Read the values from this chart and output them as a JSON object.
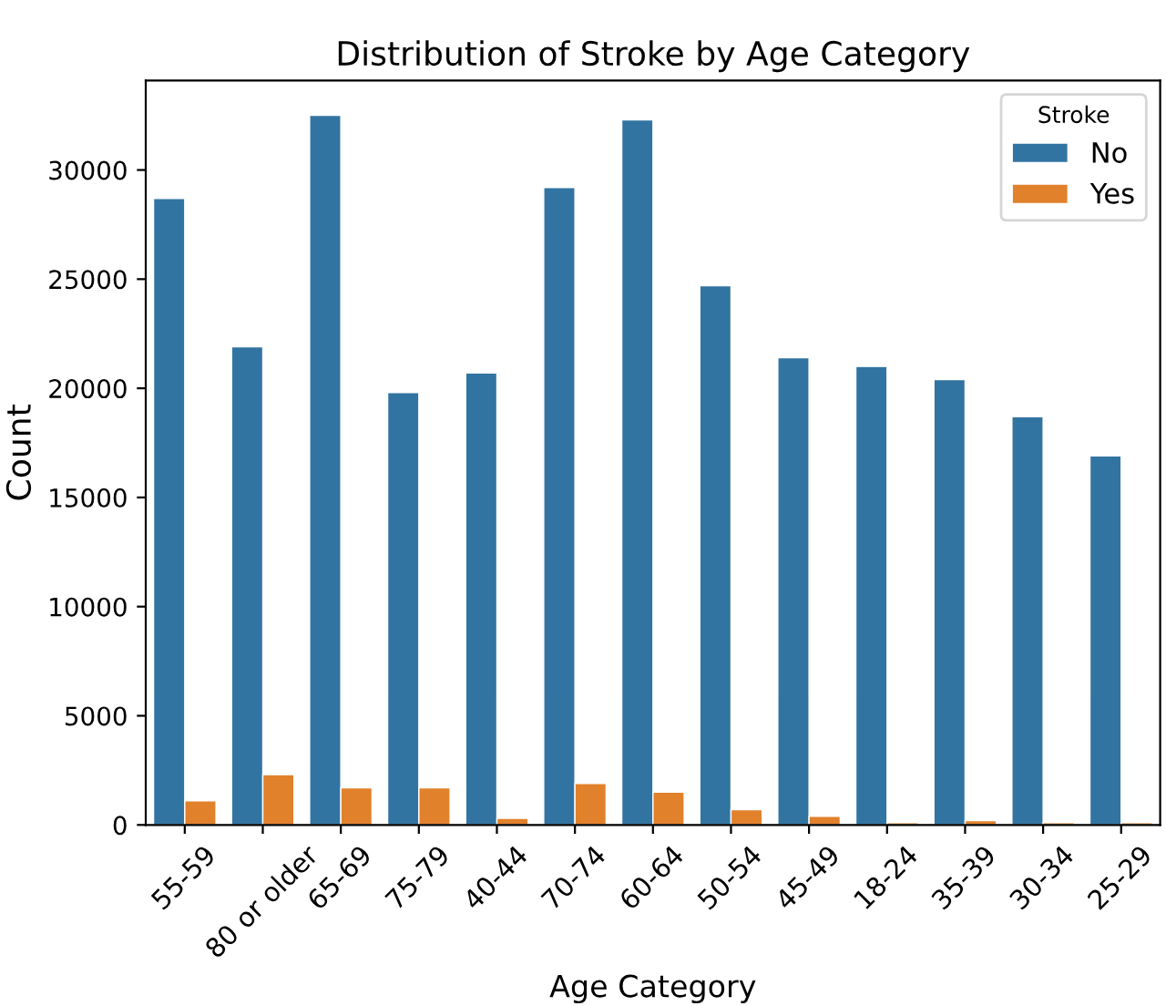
{
  "chart_data": {
    "type": "bar",
    "title": "Distribution of Stroke by Age Category",
    "xlabel": "Age Category",
    "ylabel": "Count",
    "legend_title": "Stroke",
    "categories": [
      "55-59",
      "80 or older",
      "65-69",
      "75-79",
      "40-44",
      "70-74",
      "60-64",
      "50-54",
      "45-49",
      "18-24",
      "35-39",
      "30-34",
      "25-29"
    ],
    "series": [
      {
        "name": "No",
        "color": "#3274a1",
        "values": [
          28700,
          21900,
          32500,
          19800,
          20700,
          29200,
          32300,
          24700,
          21400,
          21000,
          20400,
          18700,
          16900
        ]
      },
      {
        "name": "Yes",
        "color": "#e1812c",
        "values": [
          1100,
          2300,
          1700,
          1700,
          300,
          1900,
          1500,
          700,
          400,
          100,
          200,
          100,
          100
        ]
      }
    ],
    "ylim": [
      0,
      34100
    ],
    "yticks": [
      0,
      5000,
      10000,
      15000,
      20000,
      25000,
      30000
    ],
    "grid": false,
    "legend": "top right"
  }
}
